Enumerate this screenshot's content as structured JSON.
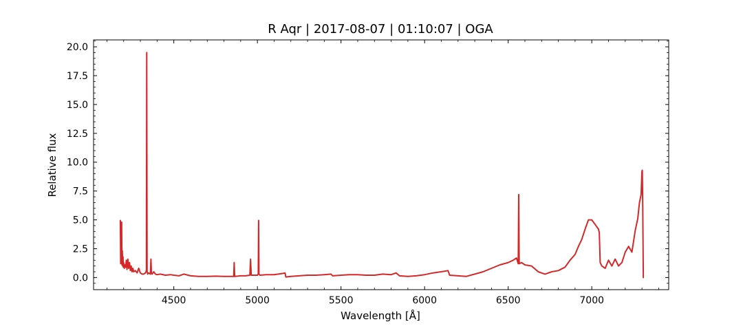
{
  "chart_data": {
    "type": "line",
    "title": "R Aqr | 2017-08-07 | 01:10:07 | OGA",
    "xlabel": "Wavelength [Å]",
    "ylabel": "Relative flux",
    "xlim": [
      4020,
      7460
    ],
    "ylim": [
      -1.05,
      20.6
    ],
    "x_ticks": [
      4500,
      5000,
      5500,
      6000,
      6500,
      7000
    ],
    "x_tick_labels": [
      "4500",
      "5000",
      "5500",
      "6000",
      "6500",
      "7000"
    ],
    "y_ticks": [
      0,
      2.5,
      5,
      7.5,
      10,
      12.5,
      15,
      17.5,
      20
    ],
    "y_tick_labels": [
      "0.0",
      "2.5",
      "5.0",
      "7.5",
      "10.0",
      "12.5",
      "15.0",
      "17.5",
      "20.0"
    ],
    "grid": false,
    "legend": "none",
    "series": [
      {
        "color": "#d62728",
        "x": [
          4180,
          4182,
          4184,
          4186,
          4188,
          4190,
          4192,
          4194,
          4196,
          4198,
          4200,
          4204,
          4208,
          4212,
          4216,
          4220,
          4225,
          4230,
          4235,
          4240,
          4245,
          4250,
          4255,
          4260,
          4270,
          4280,
          4290,
          4300,
          4310,
          4320,
          4330,
          4336,
          4338,
          4340,
          4342,
          4344,
          4350,
          4360,
          4363,
          4366,
          4370,
          4380,
          4390,
          4400,
          4420,
          4450,
          4480,
          4500,
          4530,
          4560,
          4600,
          4650,
          4700,
          4750,
          4800,
          4840,
          4858,
          4861,
          4864,
          4880,
          4900,
          4930,
          4955,
          4959,
          4963,
          4980,
          5000,
          5005,
          5007,
          5009,
          5015,
          5050,
          5100,
          5150,
          5165,
          5170,
          5200,
          5250,
          5300,
          5350,
          5400,
          5440,
          5450,
          5500,
          5550,
          5600,
          5650,
          5700,
          5750,
          5800,
          5830,
          5850,
          5900,
          5950,
          6000,
          6050,
          6100,
          6140,
          6150,
          6200,
          6250,
          6300,
          6350,
          6400,
          6450,
          6500,
          6530,
          6550,
          6560,
          6563,
          6566,
          6580,
          6600,
          6640,
          6680,
          6720,
          6760,
          6800,
          6840,
          6870,
          6900,
          6920,
          6940,
          6960,
          6980,
          7000,
          7020,
          7040,
          7045,
          7050,
          7060,
          7080,
          7100,
          7120,
          7140,
          7160,
          7180,
          7200,
          7220,
          7240,
          7260,
          7275,
          7285,
          7295,
          7300,
          7302,
          7305,
          7308,
          7312
        ],
        "values": [
          5.0,
          1.2,
          4.7,
          1.4,
          4.8,
          1.1,
          2.3,
          1.0,
          1.8,
          0.9,
          1.3,
          0.8,
          1.1,
          0.9,
          1.5,
          0.7,
          1.6,
          0.8,
          1.3,
          0.6,
          1.0,
          0.5,
          0.8,
          0.5,
          0.6,
          0.4,
          0.8,
          0.4,
          0.3,
          0.3,
          0.4,
          0.6,
          19.5,
          0.5,
          0.4,
          0.3,
          0.4,
          0.3,
          1.6,
          0.4,
          0.3,
          0.5,
          0.3,
          0.25,
          0.3,
          0.2,
          0.25,
          0.2,
          0.15,
          0.3,
          0.15,
          0.1,
          0.1,
          0.12,
          0.1,
          0.1,
          0.1,
          1.3,
          0.1,
          0.12,
          0.15,
          0.15,
          0.2,
          1.6,
          0.2,
          0.2,
          0.2,
          0.3,
          4.95,
          0.3,
          0.2,
          0.25,
          0.25,
          0.35,
          0.4,
          0.05,
          0.1,
          0.15,
          0.2,
          0.2,
          0.25,
          0.3,
          0.15,
          0.2,
          0.25,
          0.25,
          0.2,
          0.2,
          0.3,
          0.25,
          0.4,
          0.15,
          0.1,
          0.15,
          0.25,
          0.4,
          0.5,
          0.6,
          0.2,
          0.15,
          0.1,
          0.3,
          0.5,
          0.8,
          1.1,
          1.3,
          1.5,
          1.7,
          1.2,
          7.2,
          1.2,
          1.3,
          1.1,
          1.0,
          0.5,
          0.3,
          0.5,
          0.6,
          0.9,
          1.5,
          2.0,
          2.7,
          3.3,
          4.2,
          5.0,
          5.0,
          4.6,
          4.2,
          3.9,
          1.3,
          1.0,
          0.8,
          1.5,
          1.0,
          1.6,
          1.0,
          1.3,
          2.2,
          2.7,
          2.2,
          4.1,
          5.1,
          6.5,
          7.2,
          9.2,
          9.3,
          6.0,
          0.0,
          0.0
        ]
      }
    ]
  }
}
